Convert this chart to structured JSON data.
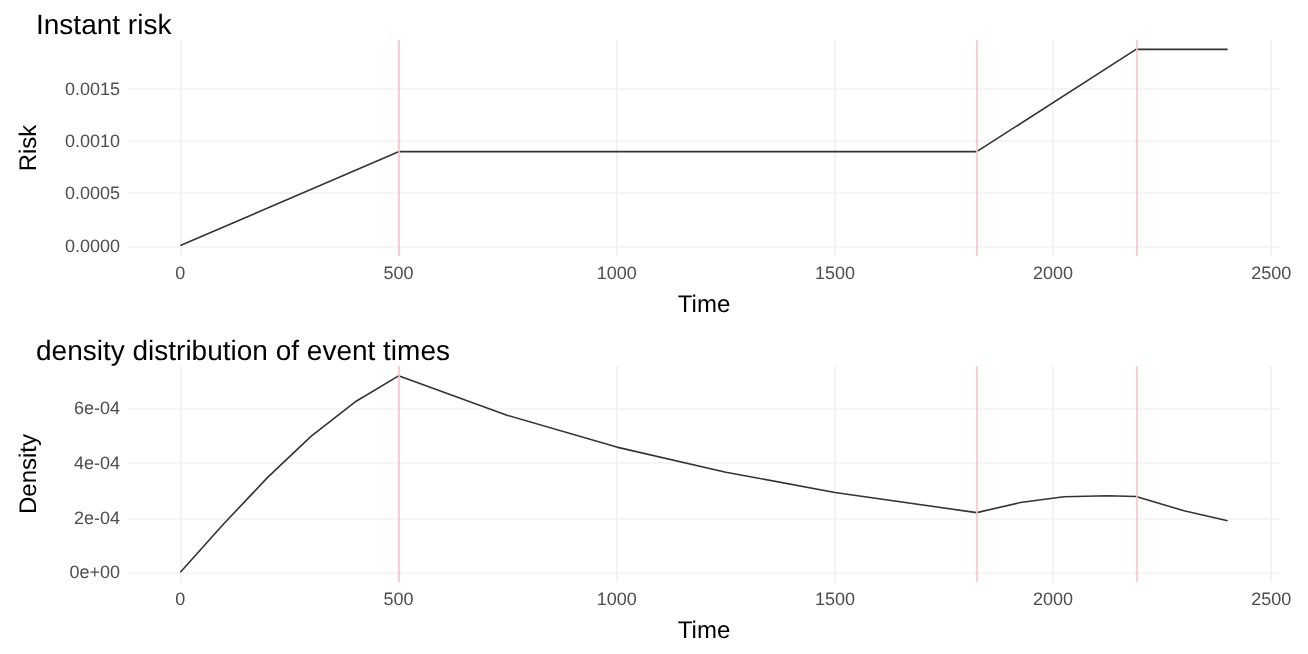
{
  "chart_data": [
    {
      "type": "line",
      "title": "Instant risk",
      "xlabel": "Time",
      "ylabel": "Risk",
      "series": [
        {
          "color": "#333333",
          "x": [
            0,
            500,
            1825,
            2190,
            2400
          ],
          "values": [
            0,
            0.0009,
            0.0009,
            0.00188,
            0.00188
          ]
        }
      ],
      "xlim": [
        -120,
        2520
      ],
      "xticks": [
        0,
        500,
        1000,
        1500,
        2000,
        2500
      ],
      "ylim": [
        -0.0001,
        0.00197
      ],
      "yticks": [
        {
          "value": 0,
          "label": "0.0000"
        },
        {
          "value": 0.0005,
          "label": "0.0005"
        },
        {
          "value": 0.001,
          "label": "0.0010"
        },
        {
          "value": 0.0015,
          "label": "0.0015"
        }
      ],
      "ref_lines": [
        {
          "axis": "x",
          "value": 500,
          "color": "#ffc0cb"
        },
        {
          "axis": "x",
          "value": 1825,
          "color": "#ffc0cb"
        },
        {
          "axis": "x",
          "value": 2190,
          "color": "#ffc0cb"
        }
      ],
      "grid": true,
      "marker": "none",
      "line_style": "solid"
    },
    {
      "type": "line",
      "title": "density distribution of event times",
      "xlabel": "Time",
      "ylabel": "Density",
      "series": [
        {
          "color": "#333333",
          "x": [
            0,
            100,
            200,
            300,
            400,
            500,
            750,
            1000,
            1250,
            1500,
            1825,
            1925,
            2025,
            2125,
            2190,
            2300,
            2400
          ],
          "values": [
            0,
            0.000178,
            0.000347,
            0.000498,
            0.000623,
            0.000719,
            0.000574,
            0.000458,
            0.000366,
            0.000292,
            0.000218,
            0.000255,
            0.000276,
            0.00028,
            0.000277,
            0.000225,
            0.000188
          ]
        }
      ],
      "xlim": [
        -120,
        2520
      ],
      "xticks": [
        0,
        500,
        1000,
        1500,
        2000,
        2500
      ],
      "ylim": [
        -3.6e-05,
        0.000755
      ],
      "yticks": [
        {
          "value": 0,
          "label": "0e+00"
        },
        {
          "value": 0.0002,
          "label": "2e-04"
        },
        {
          "value": 0.0004,
          "label": "4e-04"
        },
        {
          "value": 0.0006,
          "label": "6e-04"
        }
      ],
      "ref_lines": [
        {
          "axis": "x",
          "value": 500,
          "color": "#ffc0cb"
        },
        {
          "axis": "x",
          "value": 1825,
          "color": "#ffc0cb"
        },
        {
          "axis": "x",
          "value": 2190,
          "color": "#ffc0cb"
        }
      ],
      "grid": true,
      "marker": "none",
      "line_style": "solid"
    }
  ]
}
